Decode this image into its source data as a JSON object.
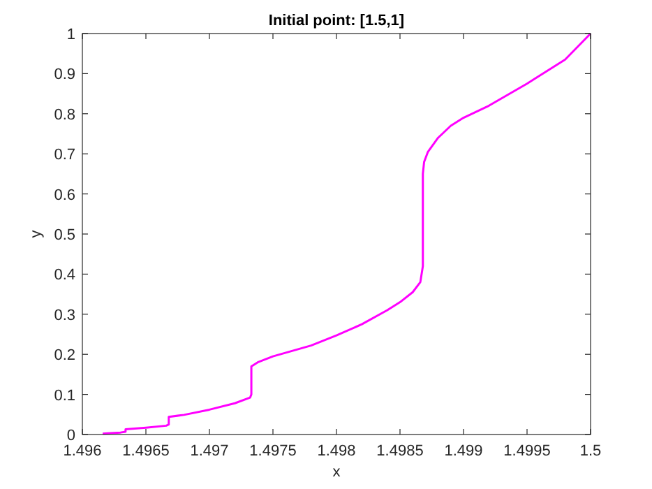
{
  "chart_data": {
    "type": "line",
    "title": "Initial point: [1.5,1]",
    "xlabel": "x",
    "ylabel": "y",
    "xlim": [
      1.496,
      1.5
    ],
    "xticks": [
      1.496,
      1.4965,
      1.497,
      1.4975,
      1.498,
      1.4985,
      1.499,
      1.4995,
      1.5
    ],
    "ylim": [
      0,
      1
    ],
    "yticks": [
      0,
      0.1,
      0.2,
      0.3,
      0.4,
      0.5,
      0.6,
      0.7,
      0.8,
      0.9,
      1
    ],
    "grid": false,
    "line_style": "solid",
    "series": [
      {
        "color": "#ff00ff",
        "x": [
          1.49616,
          1.4962,
          1.4963,
          1.49634,
          1.49634,
          1.4965,
          1.49666,
          1.49668,
          1.49668,
          1.4968,
          1.497,
          1.4972,
          1.49732,
          1.49733,
          1.49733,
          1.49738,
          1.4975,
          1.4978,
          1.498,
          1.4982,
          1.4984,
          1.4985,
          1.4986,
          1.49866,
          1.49868,
          1.49868,
          1.49869,
          1.49872,
          1.4988,
          1.4989,
          1.499,
          1.4992,
          1.4995,
          1.4998,
          1.5
        ],
        "values": [
          0.002,
          0.003,
          0.005,
          0.007,
          0.013,
          0.017,
          0.022,
          0.025,
          0.044,
          0.049,
          0.062,
          0.078,
          0.092,
          0.1,
          0.17,
          0.18,
          0.195,
          0.222,
          0.247,
          0.275,
          0.31,
          0.33,
          0.355,
          0.38,
          0.42,
          0.65,
          0.68,
          0.705,
          0.74,
          0.77,
          0.79,
          0.82,
          0.875,
          0.935,
          1
        ]
      }
    ]
  }
}
